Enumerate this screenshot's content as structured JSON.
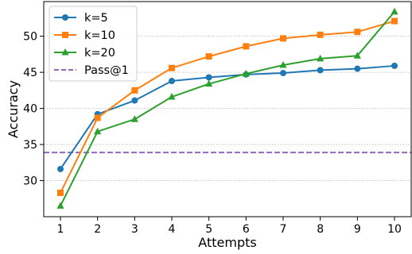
{
  "chart_data": {
    "type": "line",
    "xlabel": "Attempts",
    "ylabel": "Accuracy",
    "x": [
      1,
      2,
      3,
      4,
      5,
      6,
      7,
      8,
      9,
      10
    ],
    "xlim": [
      0.55,
      10.45
    ],
    "ylim": [
      25.0,
      54.8
    ],
    "yticks": [
      30,
      35,
      40,
      45,
      50
    ],
    "grid": "y-dotted",
    "legend_position": "top-left",
    "series": [
      {
        "name": "k=5",
        "color": "#1f77b4",
        "marker": "circle",
        "values": [
          31.6,
          39.2,
          41.1,
          43.8,
          44.3,
          44.7,
          44.9,
          45.3,
          45.5,
          45.9
        ]
      },
      {
        "name": "k=10",
        "color": "#ff7f0e",
        "marker": "square",
        "values": [
          28.3,
          38.7,
          42.5,
          45.6,
          47.2,
          48.6,
          49.7,
          50.2,
          50.6,
          52.1
        ]
      },
      {
        "name": "k=20",
        "color": "#2ca02c",
        "marker": "triangle",
        "values": [
          26.5,
          36.8,
          38.5,
          41.6,
          43.4,
          44.8,
          46.0,
          46.9,
          47.3,
          53.4
        ]
      }
    ],
    "reference_lines": [
      {
        "name": "Pass@1",
        "color": "#9467bd",
        "style": "dashed",
        "value": 33.9
      }
    ]
  }
}
